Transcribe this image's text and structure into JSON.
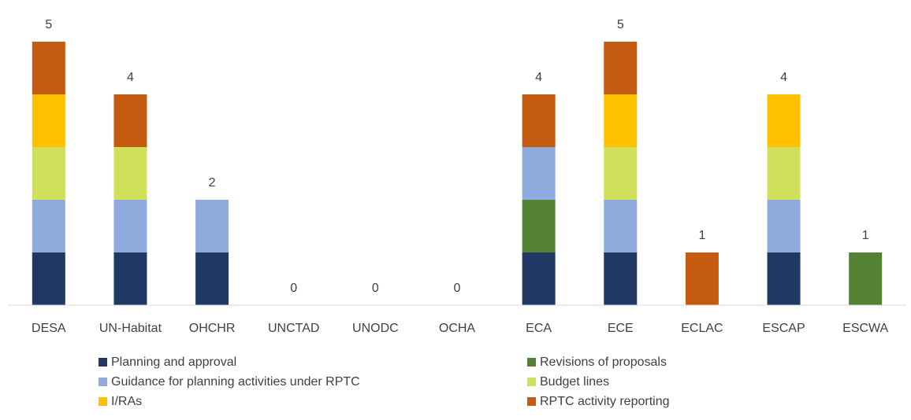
{
  "chart_data": {
    "type": "stacked_bar",
    "categories": [
      "DESA",
      "UN-Habitat",
      "OHCHR",
      "UNCTAD",
      "UNODC",
      "OCHA",
      "ECA",
      "ECE",
      "ECLAC",
      "ESCAP",
      "ESCWA"
    ],
    "series": [
      {
        "name": "Planning and approval",
        "color": "#203864",
        "values": [
          1,
          1,
          1,
          0,
          0,
          0,
          1,
          1,
          0,
          1,
          0
        ]
      },
      {
        "name": "Revisions of proposals",
        "color": "#548235",
        "values": [
          0,
          0,
          0,
          0,
          0,
          0,
          1,
          0,
          0,
          0,
          1
        ]
      },
      {
        "name": "Guidance for planning activities under RPTC",
        "color": "#8faadc",
        "values": [
          1,
          1,
          1,
          0,
          0,
          0,
          1,
          1,
          0,
          1,
          0
        ]
      },
      {
        "name": "Budget lines",
        "color": "#d0e05a",
        "values": [
          1,
          1,
          0,
          0,
          0,
          0,
          0,
          1,
          0,
          1,
          0
        ]
      },
      {
        "name": "I/RAs",
        "color": "#ffc000",
        "values": [
          1,
          0,
          0,
          0,
          0,
          0,
          0,
          1,
          0,
          1,
          0
        ]
      },
      {
        "name": "RPTC activity reporting",
        "color": "#c55a11",
        "values": [
          1,
          1,
          0,
          0,
          0,
          0,
          1,
          1,
          1,
          0,
          0
        ]
      }
    ],
    "totals": [
      5,
      4,
      2,
      0,
      0,
      0,
      4,
      5,
      1,
      4,
      1
    ],
    "ylim": [
      0,
      5.5
    ],
    "legend": "bottom"
  }
}
